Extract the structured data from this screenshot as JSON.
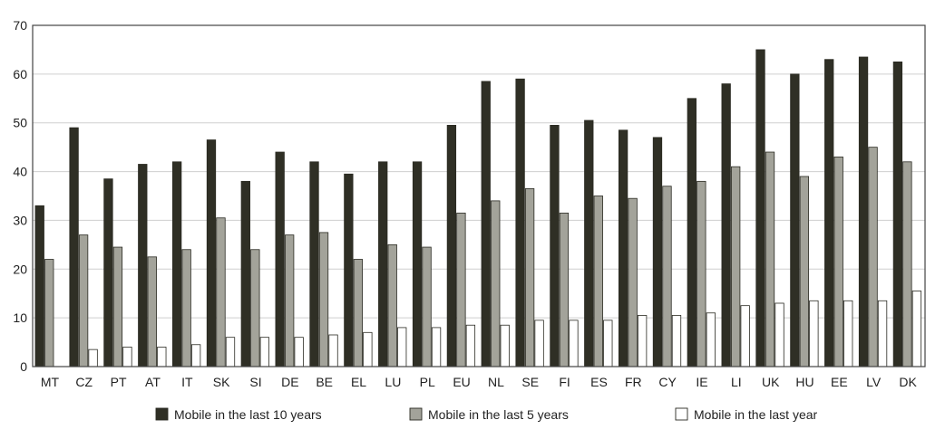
{
  "chart_data": {
    "type": "bar",
    "title": "",
    "xlabel": "",
    "ylabel": "",
    "ylim": [
      0,
      70
    ],
    "yticks": [
      "0",
      "10",
      "20",
      "30",
      "40",
      "50",
      "60",
      "70"
    ],
    "grid": true,
    "legend_position": "bottom",
    "categories": [
      "MT",
      "CZ",
      "PT",
      "AT",
      "IT",
      "SK",
      "SI",
      "DE",
      "BE",
      "EL",
      "LU",
      "PL",
      "EU",
      "NL",
      "SE",
      "FI",
      "ES",
      "FR",
      "CY",
      "IE",
      "LI",
      "UK",
      "HU",
      "EE",
      "LV",
      "DK"
    ],
    "series": [
      {
        "name": "Mobile in the last 10 years",
        "color": "#2f2f25",
        "values": [
          33,
          49,
          38.5,
          41.5,
          42,
          46.5,
          38,
          44,
          42,
          39.5,
          42,
          42,
          49.5,
          58.5,
          59,
          49.5,
          50.5,
          48.5,
          47,
          55,
          58,
          65,
          60,
          63,
          63.5,
          62.5
        ]
      },
      {
        "name": "Mobile in the last 5 years",
        "color": "#a3a39a",
        "values": [
          22,
          27,
          24.5,
          22.5,
          24,
          30.5,
          24,
          27,
          27.5,
          22,
          25,
          24.5,
          31.5,
          34,
          36.5,
          31.5,
          35,
          34.5,
          37,
          38,
          41,
          44,
          39,
          43,
          45,
          42
        ]
      },
      {
        "name": "Mobile in the last year",
        "color": "#ffffff",
        "values": [
          0,
          3.5,
          4,
          4,
          4.5,
          6,
          6,
          6,
          6.5,
          7,
          8,
          8,
          8.5,
          8.5,
          9.5,
          9.5,
          9.5,
          10.5,
          10.5,
          11,
          12.5,
          13,
          13.5,
          13.5,
          13.5,
          15.5
        ]
      }
    ]
  }
}
